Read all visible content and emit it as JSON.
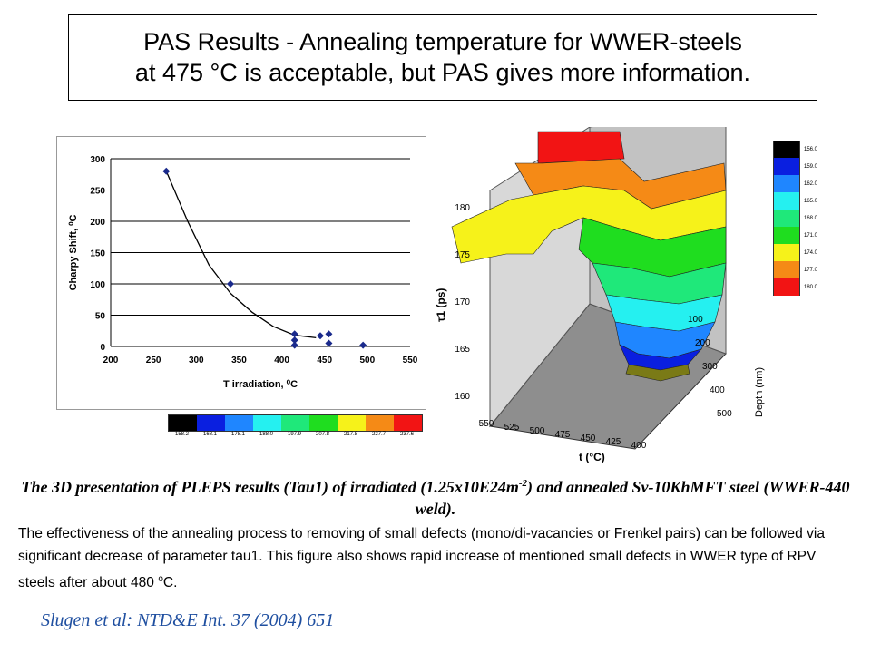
{
  "title": {
    "line1": "PAS Results - Annealing temperature for WWER-steels",
    "line2": "at 475 °C is acceptable, but PAS gives more information."
  },
  "chart_data": [
    {
      "type": "scatter",
      "xlabel": "T irradiation, ⁰C",
      "ylabel": "Charpy Shift, ⁰C",
      "xlim": [
        200,
        550
      ],
      "ylim": [
        0,
        300
      ],
      "x_ticks": [
        "200",
        "250",
        "300",
        "350",
        "400",
        "450",
        "500",
        "550"
      ],
      "y_ticks": [
        "0",
        "50",
        "100",
        "150",
        "200",
        "250",
        "300"
      ],
      "grid": "horizontal",
      "points": [
        [
          265,
          280
        ],
        [
          340,
          100
        ],
        [
          415,
          20
        ],
        [
          415,
          10
        ],
        [
          415,
          2
        ],
        [
          445,
          17
        ],
        [
          455,
          20
        ],
        [
          455,
          5
        ],
        [
          495,
          2
        ]
      ],
      "trend": [
        [
          265,
          280
        ],
        [
          290,
          200
        ],
        [
          315,
          130
        ],
        [
          340,
          85
        ],
        [
          365,
          55
        ],
        [
          390,
          32
        ],
        [
          415,
          18
        ],
        [
          440,
          14
        ]
      ]
    },
    {
      "type": "surface",
      "zlabel": "τ1 (ps)",
      "xlabel": "t (°C)",
      "ylabel": "Depth (nm)",
      "z_ticks": [
        "160",
        "165",
        "170",
        "175",
        "180"
      ],
      "x_ticks": [
        "550",
        "525",
        "500",
        "475",
        "450",
        "425",
        "400"
      ],
      "y_ticks": [
        "100",
        "200",
        "300",
        "400",
        "500"
      ]
    }
  ],
  "legend_horizontal": {
    "colors": [
      "#000000",
      "#0a1fe0",
      "#1f86ff",
      "#25f0f0",
      "#1fe87a",
      "#1fdd1f",
      "#f6f21a",
      "#f58a16",
      "#f21414"
    ],
    "labels": [
      "158.2",
      "168.1",
      "178.1",
      "188.0",
      "197.9",
      "207.8",
      "217.8",
      "227.7",
      "237.6"
    ]
  },
  "legend_vertical": {
    "colors": [
      "#000000",
      "#0a1fe0",
      "#1f86ff",
      "#25f0f0",
      "#1fe87a",
      "#1fdd1f",
      "#f6f21a",
      "#f58a16",
      "#f21414"
    ],
    "labels": [
      "156.0",
      "159.0",
      "162.0",
      "165.0",
      "168.0",
      "171.0",
      "174.0",
      "177.0",
      "180.0"
    ]
  },
  "caption": {
    "part1": "The 3D presentation of PLEPS results (Tau1) of irradiated (1.25x10E24m",
    "sup": "-2",
    "part2": ") and annealed Sv-10KhMFT steel (WWER-440 weld)."
  },
  "body": {
    "part1": "The effectiveness of the annealing process to removing of small defects (mono/di-vacancies or Frenkel pairs) can be followed via significant decrease of parameter tau1. This figure also shows rapid increase of mentioned small defects in WWER type of RPV steels after about 480 ",
    "sup": "o",
    "part2": "C."
  },
  "citation": "Slugen et al: NTD&E Int. 37 (2004) 651"
}
